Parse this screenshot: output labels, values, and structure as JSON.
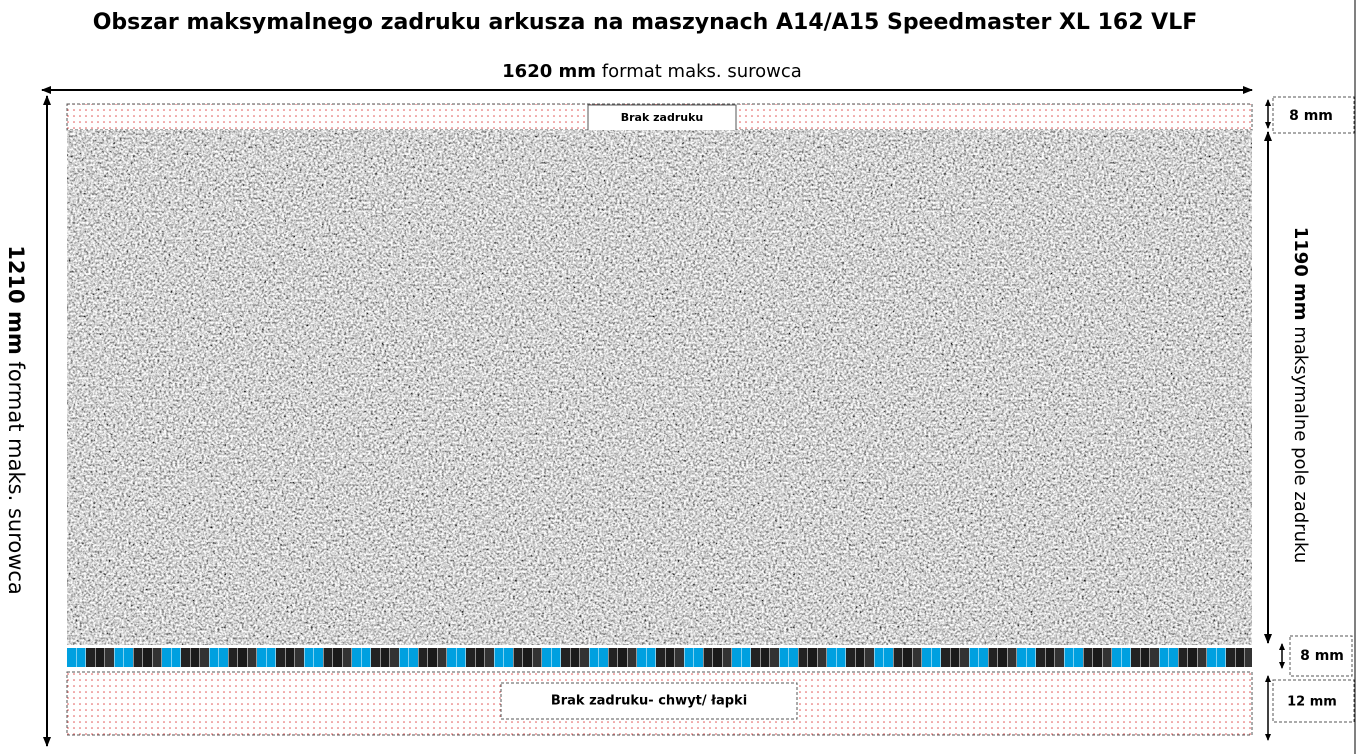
{
  "title": "Obszar maksymalnego zadruku arkusza na maszynach A14/A15 Speedmaster  XL 162 VLF",
  "width_dimension": {
    "value": "1620 mm",
    "label": "format maks. surowca"
  },
  "height_dimension": {
    "value": "1210 mm",
    "label": "format maks. surowca"
  },
  "print_area_dimension": {
    "value": "1190 mm",
    "label": "maksymalne pole zadruku"
  },
  "top_margin": {
    "label": "Brak zadruku",
    "size": "8 mm"
  },
  "color_bar": {
    "size": "8 mm"
  },
  "bottom_margin": {
    "label": "Brak zadruku- chwyt/ łapki",
    "size": "12 mm"
  }
}
